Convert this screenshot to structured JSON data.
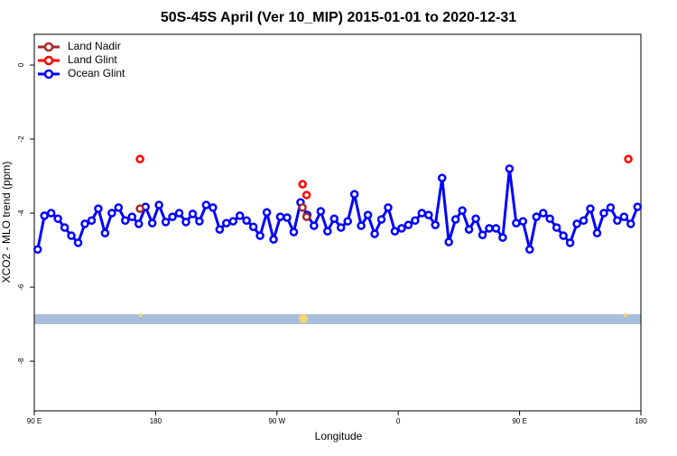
{
  "chart_data": {
    "type": "line",
    "title": "50S-45S April (Ver 10_MIP)   2015-01-01 to 2020-12-31",
    "x_label": "Longitude",
    "y_label": "XCO2 - MLO trend (ppm)",
    "xlim": [
      90,
      540
    ],
    "ylim": [
      0.83,
      -9.34
    ],
    "xticks": [
      {
        "value": 90,
        "label": "90 E"
      },
      {
        "value": 180,
        "label": "180"
      },
      {
        "value": 270,
        "label": "90 W"
      },
      {
        "value": 360,
        "label": "0"
      },
      {
        "value": 450,
        "label": "90 E"
      },
      {
        "value": 540,
        "label": "180"
      }
    ],
    "yticks": [
      0,
      -2,
      -4,
      -6,
      -8
    ],
    "legend": "upper left",
    "series": [
      {
        "name": "Land Nadir",
        "color": "#a52a2a",
        "linestyle": "none",
        "x": [
          168.4,
          289,
          292
        ],
        "values": [
          -3.88,
          -3.85,
          -4.1
        ]
      },
      {
        "name": "Land Glint",
        "color": "#ff0000",
        "linestyle": "none",
        "x": [
          168.4,
          289,
          292,
          530.7
        ],
        "values": [
          -2.54,
          -3.22,
          -3.51,
          -2.54
        ]
      },
      {
        "name": "Ocean Glint",
        "color": "#0000ff",
        "linestyle": "solid",
        "x": [
          92.5,
          97.5,
          102.5,
          107.5,
          112.5,
          117.5,
          122.5,
          127.5,
          132.5,
          137.5,
          142.5,
          147.5,
          152.5,
          157.5,
          162.5,
          167.5,
          172.5,
          177.5,
          182.5,
          187.5,
          192.5,
          197.5,
          202.5,
          207.5,
          212.5,
          217.5,
          222.5,
          227.5,
          232.5,
          237.5,
          242.5,
          247.5,
          252.5,
          257.5,
          262.5,
          267.5,
          272.5,
          277.5,
          282.5,
          287.5,
          292.5,
          297.5,
          302.5,
          307.5,
          312.5,
          317.5,
          322.5,
          327.5,
          332.5,
          337.5,
          342.5,
          347.5,
          352.5,
          357.5,
          362.5,
          367.5,
          372.5,
          377.5,
          382.5,
          387.5,
          392.5,
          397.5,
          402.5,
          407.5,
          412.5,
          417.5,
          422.5,
          427.5,
          432.5,
          437.5,
          442.5,
          447.5,
          452.5,
          457.5,
          462.5,
          467.5,
          472.5,
          477.5,
          482.5,
          487.5,
          492.5,
          497.5,
          502.5,
          507.5,
          512.5,
          517.5,
          522.5,
          527.5,
          532.5,
          537.5
        ],
        "values": [
          -4.98,
          -4.07,
          -4.0,
          -4.15,
          -4.39,
          -4.61,
          -4.8,
          -4.29,
          -4.2,
          -3.88,
          -4.54,
          -4.0,
          -3.85,
          -4.2,
          -4.1,
          -4.29,
          -3.83,
          -4.27,
          -3.78,
          -4.24,
          -4.1,
          -4.0,
          -4.24,
          -4.02,
          -4.22,
          -3.78,
          -3.85,
          -4.44,
          -4.27,
          -4.22,
          -4.07,
          -4.2,
          -4.37,
          -4.61,
          -3.98,
          -4.71,
          -4.1,
          -4.12,
          -4.51,
          -3.71,
          -4.05,
          -4.34,
          -3.95,
          -4.49,
          -4.15,
          -4.39,
          -4.22,
          -3.49,
          -4.34,
          -4.05,
          -4.56,
          -4.17,
          -3.85,
          -4.49,
          -4.41,
          -4.32,
          -4.2,
          -4.0,
          -4.05,
          -4.32,
          -3.05,
          -4.78,
          -4.17,
          -3.93,
          -4.44,
          -4.15,
          -4.59,
          -4.41,
          -4.41,
          -4.66,
          -2.8,
          -4.27,
          -4.22,
          -4.98,
          -4.1,
          -4.0,
          -4.15,
          -4.39,
          -4.61,
          -4.8,
          -4.29,
          -4.2,
          -3.88,
          -4.54,
          -4.0,
          -3.85,
          -4.2,
          -4.1,
          -4.29,
          -3.83
        ]
      }
    ]
  }
}
